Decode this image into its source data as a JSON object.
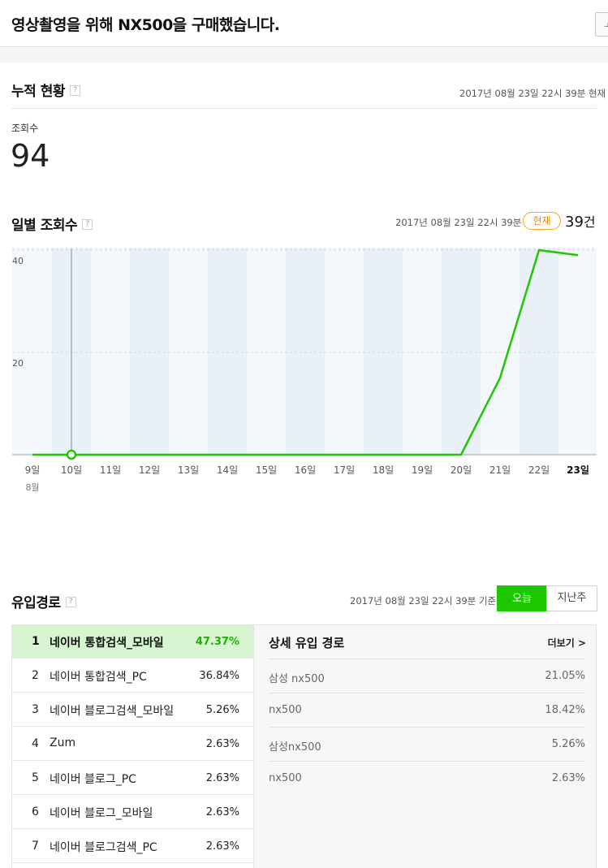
{
  "header": {
    "title": "영상촬영을 위해 NX500을 구매했습니다.",
    "side_button_glyph": "ㅗ"
  },
  "cumulative": {
    "title": "누적 현황",
    "help": "?",
    "timestamp": "2017년 08월 23일 22시 39분 현재",
    "views_label": "조회수",
    "views_value": "94"
  },
  "daily": {
    "title": "일별 조회수",
    "help": "?",
    "timestamp": "2017년 08월 23일 22시 39분",
    "now_badge": "현재",
    "now_count": "39",
    "now_unit": "건"
  },
  "chart_data": {
    "type": "line",
    "categories": [
      "9일",
      "10일",
      "11일",
      "12일",
      "13일",
      "14일",
      "15일",
      "16일",
      "17일",
      "18일",
      "19일",
      "20일",
      "21일",
      "22일",
      "23일"
    ],
    "month_label": "8월",
    "values": [
      0,
      0,
      0,
      0,
      0,
      0,
      0,
      0,
      0,
      0,
      0,
      0,
      15,
      40,
      39
    ],
    "ylim": [
      0,
      40
    ],
    "yticks": [
      "20",
      "40"
    ],
    "highlight_index": 1,
    "bold_index": 14,
    "grid": true,
    "colors": {
      "line": "#1ec800",
      "plot_bg": "#f4f7fb",
      "band": "#eaf0f7"
    }
  },
  "inflow": {
    "title": "유입경로",
    "help": "?",
    "timestamp": "2017년 08월 23일 22시 39분 기준",
    "tabs": {
      "today": "오늘",
      "last_week": "지난주"
    },
    "ranks": [
      {
        "num": "1",
        "name": "네이버 통합검색_모바일",
        "pct": "47.37%"
      },
      {
        "num": "2",
        "name": "네이버 통합검색_PC",
        "pct": "36.84%"
      },
      {
        "num": "3",
        "name": "네이버 블로그검색_모바일",
        "pct": "5.26%"
      },
      {
        "num": "4",
        "name": "Zum",
        "pct": "2.63%"
      },
      {
        "num": "5",
        "name": "네이버 블로그_PC",
        "pct": "2.63%"
      },
      {
        "num": "6",
        "name": "네이버 블로그_모바일",
        "pct": "2.63%"
      },
      {
        "num": "7",
        "name": "네이버 블로그검색_PC",
        "pct": "2.63%"
      }
    ],
    "detail": {
      "title": "상세 유입 경로",
      "more": "더보기 >",
      "rows": [
        {
          "key": "삼성 nx500",
          "pct": "21.05%"
        },
        {
          "key": "nx500",
          "pct": "18.42%"
        },
        {
          "key": "삼성nx500",
          "pct": "5.26%"
        },
        {
          "key": "nx500",
          "pct": "2.63%"
        }
      ]
    }
  },
  "colors": {
    "accent": "#1ec800",
    "badge": "#f08a00",
    "active_row": "#d8f5d2"
  }
}
